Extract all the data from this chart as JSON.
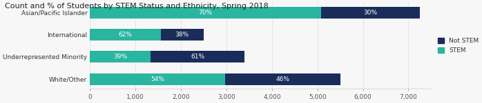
{
  "title": "Count and % of Students by STEM Status and Ethnicity, Spring 2018",
  "categories": [
    "White/Other",
    "Underrepresented Minority",
    "International",
    "Asian/Pacific Islander"
  ],
  "stem_values": [
    2970,
    1326,
    1550,
    5075
  ],
  "not_stem_values": [
    2530,
    2074,
    950,
    2175
  ],
  "stem_pct": [
    "54%",
    "39%",
    "62%",
    "70%"
  ],
  "not_stem_pct": [
    "46%",
    "61%",
    "38%",
    "30%"
  ],
  "color_stem": "#2ab5a0",
  "color_not_stem": "#1a2d5a",
  "xlim": [
    0,
    7500
  ],
  "xticks": [
    0,
    1000,
    2000,
    3000,
    4000,
    5000,
    6000,
    7000
  ],
  "xtick_labels": [
    "0",
    "1,000",
    "2,000",
    "3,000",
    "4,000",
    "5,000",
    "6,000",
    "7,000"
  ],
  "background_color": "#f7f7f7",
  "title_fontsize": 8.0,
  "label_fontsize": 6.5,
  "tick_fontsize": 6.5,
  "bar_height": 0.52,
  "legend_not_stem": "Not STEM",
  "legend_stem": "STEM"
}
